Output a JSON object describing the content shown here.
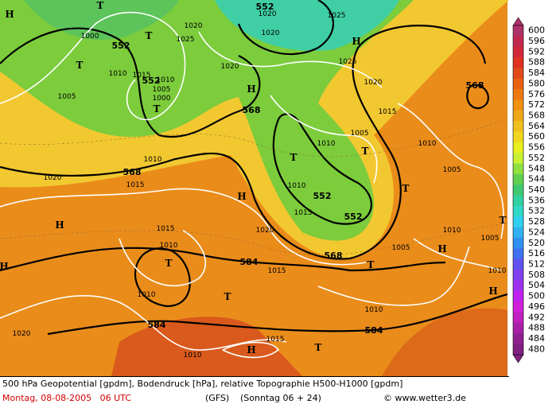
{
  "caption": {
    "description": "500 hPa Geopotential [gpdm], Bodendruck [hPa], relative Topographie H500-H1000 [gpdm]",
    "date": "Montag, 08-08-2005   06 UTC",
    "model": "(GFS)",
    "run": "(Sonntag 06 + 24)",
    "credit": "© www.wetter3.de"
  },
  "legend": {
    "values": [
      600,
      596,
      592,
      588,
      584,
      580,
      576,
      572,
      568,
      564,
      560,
      556,
      552,
      548,
      544,
      540,
      536,
      532,
      528,
      524,
      520,
      516,
      512,
      508,
      504,
      500,
      496,
      492,
      488,
      484,
      480
    ],
    "colors": [
      "#b0306a",
      "#c02850",
      "#d02838",
      "#e03020",
      "#e04a18",
      "#e86010",
      "#ee7810",
      "#f09010",
      "#f0a818",
      "#f0c020",
      "#f0d820",
      "#e8f020",
      "#c8f030",
      "#90e040",
      "#60d050",
      "#40c870",
      "#30d0a0",
      "#30d8c8",
      "#30d0f0",
      "#30b0f0",
      "#3090f0",
      "#4070f0",
      "#6050f0",
      "#8040f0",
      "#a030f0",
      "#c020f0",
      "#d020d8",
      "#c020c0",
      "#a820a8",
      "#902090",
      "#802080"
    ]
  },
  "map_labels": [
    "552",
    "1020",
    "1020",
    "1025",
    "H",
    "1025",
    "552",
    "1000",
    "T",
    "T",
    "T",
    "1025",
    "1020",
    "1020",
    "1010",
    "552",
    "1015",
    "1010",
    "1005",
    "1000",
    "T",
    "1005",
    "H",
    "H",
    "568",
    "1020",
    "1015",
    "1005",
    "1010",
    "T",
    "1010",
    "568",
    "1010",
    "568",
    "1015",
    "1020",
    "T",
    "1010",
    "552",
    "H",
    "1015",
    "552",
    "T",
    "1005",
    "T",
    "1020",
    "1010",
    "1005",
    "H",
    "1015",
    "1010",
    "T",
    "568",
    "584",
    "T",
    "1005",
    "H",
    "1010",
    "H",
    "1015",
    "1010",
    "T",
    "H",
    "1010",
    "584",
    "584",
    "1020",
    "1015",
    "H",
    "T",
    "1010"
  ]
}
